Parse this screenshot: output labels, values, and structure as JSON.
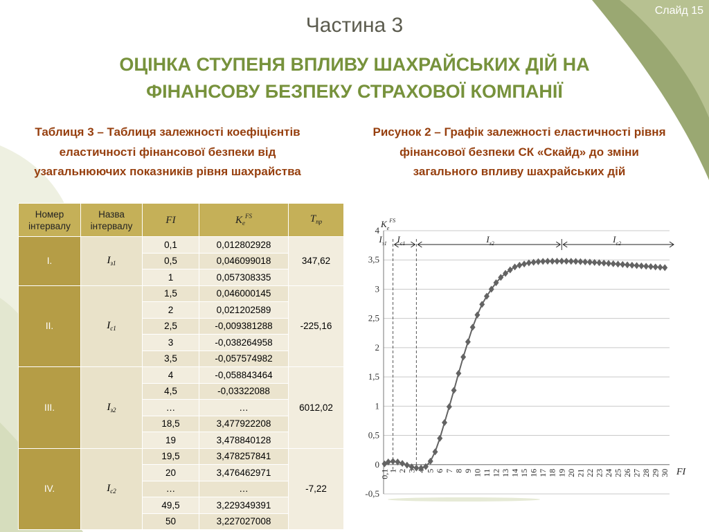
{
  "slide_label": "Слайд 15",
  "part_title": "Частина 3",
  "main_title": "ОЦІНКА СТУПЕНЯ ВПЛИВУ ШАХРАЙСЬКИХ ДІЙ НА ФІНАНСОВУ БЕЗПЕКУ СТРАХОВОЇ КОМПАНІЇ",
  "table_caption": "Таблиця 3 – Таблиця залежності коефіцієнтів еластичності фінансової безпеки від узагальнюючих показників рівня шахрайства",
  "figure_caption": "Рисунок 2 – Графік залежності еластичності рівня фінансової безпеки СК «Скайд» до зміни загального впливу шахрайських дій",
  "colors": {
    "accent_green": "#77923c",
    "caption_brown": "#963f0e",
    "header_gold": "#c5b058",
    "interval_gold": "#b59d46"
  },
  "table": {
    "headers": {
      "interval_no": "Номер інтервалу",
      "interval_name": "Назва інтервалу",
      "fi": "FI",
      "k_main": "K",
      "k_sub": "e",
      "k_sup": "FS",
      "t_main": "T",
      "t_sub": "пр"
    },
    "groups": [
      {
        "num": "І.",
        "name_main": "I",
        "name_sub": "з1",
        "tp": "347,62",
        "rows": [
          {
            "fi": "0,1",
            "k": "0,012802928"
          },
          {
            "fi": "0,5",
            "k": "0,046099018"
          },
          {
            "fi": "1",
            "k": "0,057308335"
          }
        ]
      },
      {
        "num": "ІІ.",
        "name_main": "I",
        "name_sub": "с1",
        "tp": "-225,16",
        "rows": [
          {
            "fi": "1,5",
            "k": "0,046000145"
          },
          {
            "fi": "2",
            "k": "0,021202589"
          },
          {
            "fi": "2,5",
            "k": "-0,009381288"
          },
          {
            "fi": "3",
            "k": "-0,038264958"
          },
          {
            "fi": "3,5",
            "k": "-0,057574982"
          }
        ]
      },
      {
        "num": "ІІІ.",
        "name_main": "I",
        "name_sub": "з2",
        "tp": "6012,02",
        "rows": [
          {
            "fi": "4",
            "k": "-0,058843464"
          },
          {
            "fi": "4,5",
            "k": "-0,03322088"
          },
          {
            "fi": "…",
            "k": "…"
          },
          {
            "fi": "18,5",
            "k": "3,477922208"
          },
          {
            "fi": "19",
            "k": "3,478840128"
          }
        ]
      },
      {
        "num": "ІV.",
        "name_main": "I",
        "name_sub": "с2",
        "tp": "-7,22",
        "rows": [
          {
            "fi": "19,5",
            "k": "3,478257841"
          },
          {
            "fi": "20",
            "k": "3,476462971"
          },
          {
            "fi": "…",
            "k": "…"
          },
          {
            "fi": "49,5",
            "k": "3,229349391"
          },
          {
            "fi": "50",
            "k": "3,227027008"
          }
        ]
      }
    ]
  },
  "chart_data": {
    "type": "line",
    "ylabel_main": "K",
    "ylabel_sub": "e",
    "ylabel_sup": "FS",
    "xlabel": "FI",
    "ylim": [
      -0.5,
      4
    ],
    "yticks": [
      "-0,5",
      "0",
      "0,5",
      "1",
      "1,5",
      "2",
      "2,5",
      "3",
      "3,5",
      "4"
    ],
    "xticks": [
      "0,1",
      "1",
      "2",
      "3",
      "4",
      "5",
      "6",
      "7",
      "8",
      "9",
      "10",
      "11",
      "12",
      "13",
      "14",
      "15",
      "16",
      "17",
      "18",
      "19",
      "20",
      "21",
      "22",
      "23",
      "24",
      "25",
      "26",
      "27",
      "28",
      "29",
      "30"
    ],
    "grid": "horizontal",
    "marker": "diamond",
    "color": "#636363",
    "x": [
      0.1,
      0.5,
      1,
      1.5,
      2,
      2.5,
      3,
      3.5,
      4,
      4.5,
      5,
      5.5,
      6,
      6.5,
      7,
      7.5,
      8,
      8.5,
      9,
      9.5,
      10,
      10.5,
      11,
      11.5,
      12,
      12.5,
      13,
      13.5,
      14,
      14.5,
      15,
      15.5,
      16,
      16.5,
      17,
      17.5,
      18,
      18.5,
      19,
      19.5,
      20,
      20.5,
      21,
      21.5,
      22,
      22.5,
      23,
      23.5,
      24,
      24.5,
      25,
      25.5,
      26,
      26.5,
      27,
      27.5,
      28,
      28.5,
      29,
      29.5,
      30
    ],
    "y": [
      0.013,
      0.046,
      0.057,
      0.046,
      0.021,
      -0.009,
      -0.038,
      -0.058,
      -0.059,
      -0.033,
      0.06,
      0.22,
      0.45,
      0.72,
      0.99,
      1.27,
      1.56,
      1.84,
      2.1,
      2.35,
      2.56,
      2.74,
      2.88,
      3.0,
      3.11,
      3.2,
      3.27,
      3.33,
      3.38,
      3.41,
      3.43,
      3.45,
      3.46,
      3.47,
      3.475,
      3.478,
      3.478,
      3.478,
      3.479,
      3.478,
      3.476,
      3.474,
      3.47,
      3.466,
      3.462,
      3.457,
      3.452,
      3.446,
      3.44,
      3.434,
      3.428,
      3.422,
      3.416,
      3.41,
      3.404,
      3.398,
      3.392,
      3.386,
      3.38,
      3.374,
      3.368
    ],
    "intervals": [
      {
        "main": "I",
        "sub": "з1"
      },
      {
        "main": "I",
        "sub": "с1"
      },
      {
        "main": "I",
        "sub": "з2"
      },
      {
        "main": "I",
        "sub": "с2"
      }
    ],
    "interval_bounds": [
      0.1,
      1,
      3.5,
      19,
      30
    ]
  }
}
